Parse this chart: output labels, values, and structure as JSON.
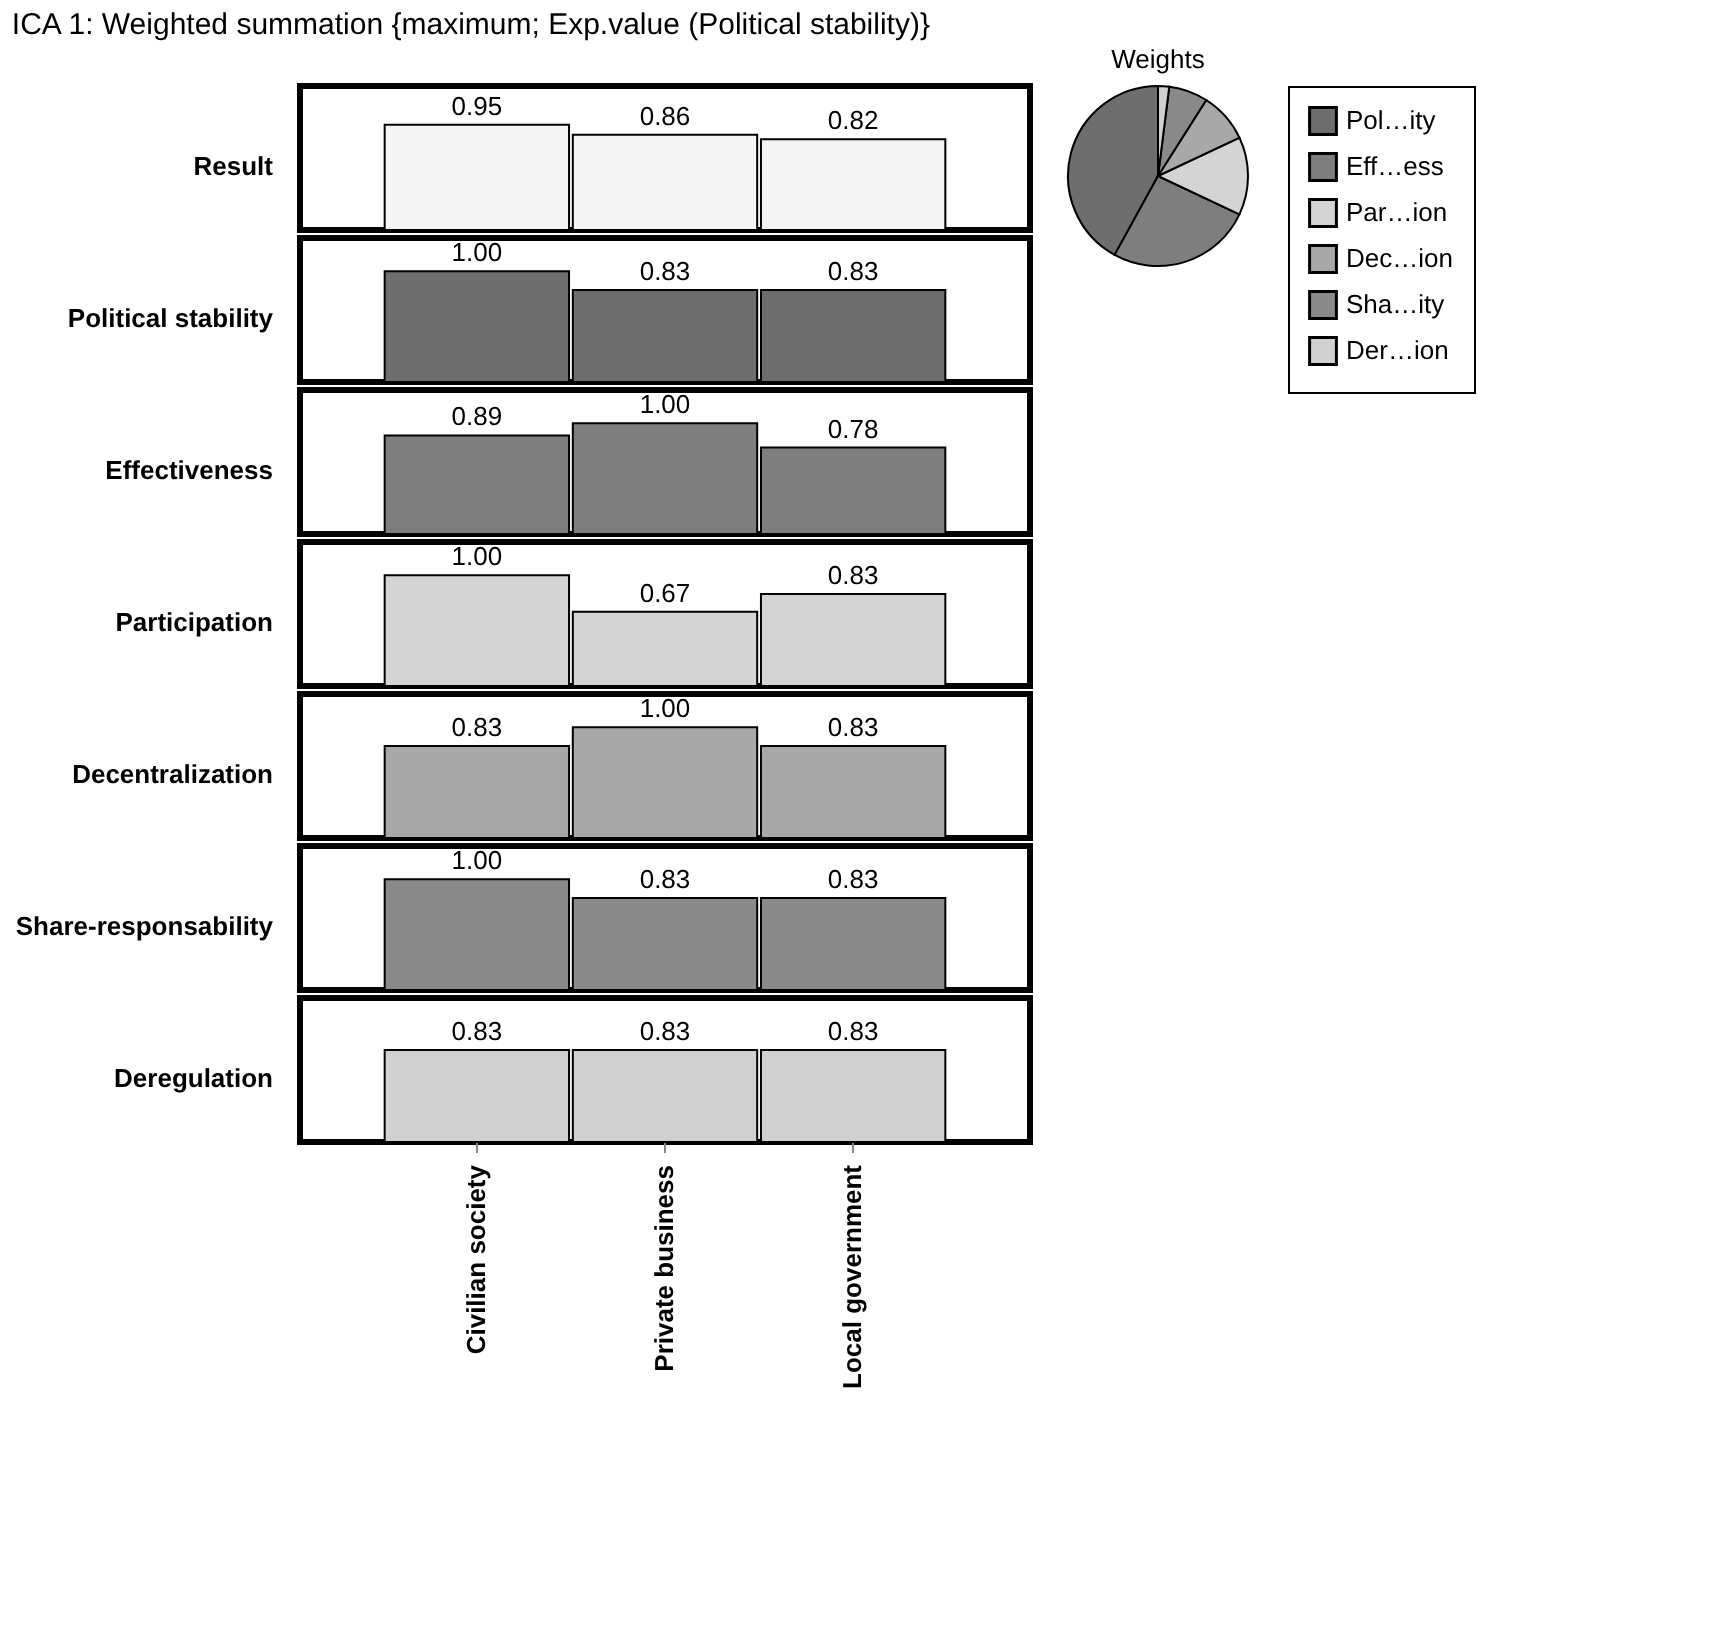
{
  "chart_data": [
    {
      "type": "bar",
      "title": "ICA 1: Weighted summation {maximum; Exp.value (Political stability)}",
      "ylabel": "Result",
      "values": [
        0.95,
        0.86,
        0.82
      ],
      "value_labels": [
        "0.95",
        "0.86",
        "0.82"
      ],
      "color": "#f4f4f4",
      "ylim": [
        0,
        1.3
      ],
      "tick_labels": false
    },
    {
      "type": "bar",
      "ylabel": "Political stability",
      "values": [
        1.0,
        0.83,
        0.83
      ],
      "value_labels": [
        "1.00",
        "0.83",
        "0.83"
      ],
      "color": "#6e6e6e",
      "ylim": [
        0,
        1.3
      ],
      "tick_labels": false
    },
    {
      "type": "bar",
      "ylabel": "Effectiveness",
      "values": [
        0.89,
        1.0,
        0.78
      ],
      "value_labels": [
        "0.89",
        "1.00",
        "0.78"
      ],
      "color": "#7e7e7e",
      "ylim": [
        0,
        1.3
      ],
      "tick_labels": false
    },
    {
      "type": "bar",
      "ylabel": "Participation",
      "values": [
        1.0,
        0.67,
        0.83
      ],
      "value_labels": [
        "1.00",
        "0.67",
        "0.83"
      ],
      "color": "#d4d4d4",
      "ylim": [
        0,
        1.3
      ],
      "tick_labels": false
    },
    {
      "type": "bar",
      "ylabel": "Decentralization",
      "values": [
        0.83,
        1.0,
        0.83
      ],
      "value_labels": [
        "0.83",
        "1.00",
        "0.83"
      ],
      "color": "#a8a8a8",
      "ylim": [
        0,
        1.3
      ],
      "tick_labels": false
    },
    {
      "type": "bar",
      "ylabel": "Share-responsability",
      "values": [
        1.0,
        0.83,
        0.83
      ],
      "value_labels": [
        "1.00",
        "0.83",
        "0.83"
      ],
      "color": "#8a8a8a",
      "ylim": [
        0,
        1.3
      ],
      "tick_labels": false
    },
    {
      "type": "bar",
      "ylabel": "Deregulation",
      "categories": [
        "Civilian society",
        "Private business",
        "Local government"
      ],
      "values": [
        0.83,
        0.83,
        0.83
      ],
      "value_labels": [
        "0.83",
        "0.83",
        "0.83"
      ],
      "color": "#d0d0d0",
      "ylim": [
        0,
        1.3
      ],
      "tick_labels": "x"
    },
    {
      "type": "pie",
      "title": "Weights",
      "categories": [
        "Pol…ity",
        "Eff…ess",
        "Par…ion",
        "Dec…ion",
        "Sha…ity",
        "Der…ion"
      ],
      "values": [
        42,
        26,
        14,
        9,
        7,
        2
      ],
      "colors": [
        "#6e6e6e",
        "#7e7e7e",
        "#d4d4d4",
        "#a8a8a8",
        "#8a8a8a",
        "#d0d0d0"
      ],
      "legend": "right"
    }
  ]
}
